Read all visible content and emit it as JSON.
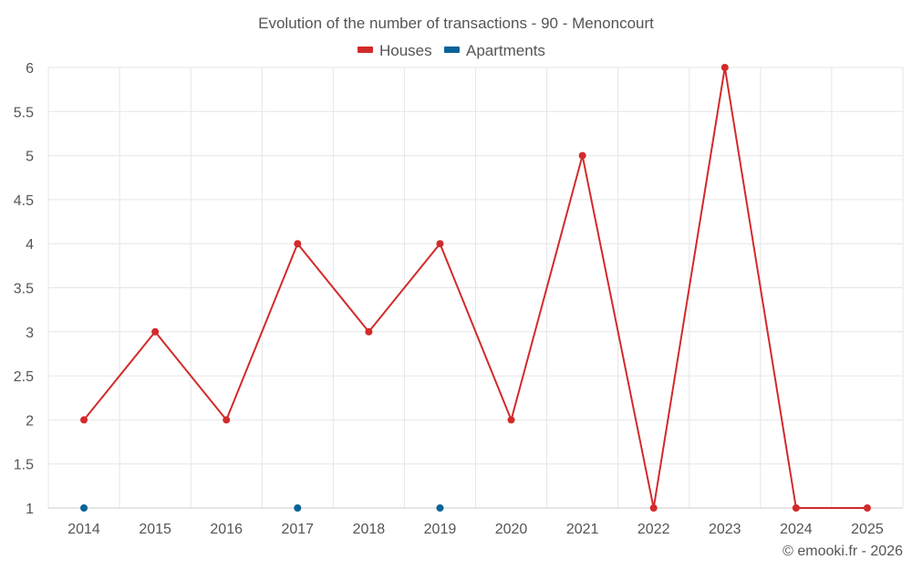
{
  "chart_data": {
    "type": "line",
    "title": "Evolution of the number of transactions - 90 - Menoncourt",
    "xlabel": "",
    "ylabel": "",
    "categories": [
      "2014",
      "2015",
      "2016",
      "2017",
      "2018",
      "2019",
      "2020",
      "2021",
      "2022",
      "2023",
      "2024",
      "2025"
    ],
    "ylim": [
      1,
      6
    ],
    "yticks": [
      "1",
      "1.5",
      "2",
      "2.5",
      "3",
      "3.5",
      "4",
      "4.5",
      "5",
      "5.5",
      "6"
    ],
    "grid": true,
    "legend_position": "top",
    "series": [
      {
        "name": "Houses",
        "color": "#d32a2a",
        "values": [
          2,
          3,
          2,
          4,
          3,
          4,
          2,
          5,
          1,
          6,
          1,
          1
        ]
      },
      {
        "name": "Apartments",
        "color": "#0b6399",
        "values": [
          1,
          null,
          null,
          1,
          null,
          1,
          null,
          null,
          null,
          null,
          null,
          null
        ]
      }
    ],
    "credit": "© emooki.fr - 2026"
  }
}
